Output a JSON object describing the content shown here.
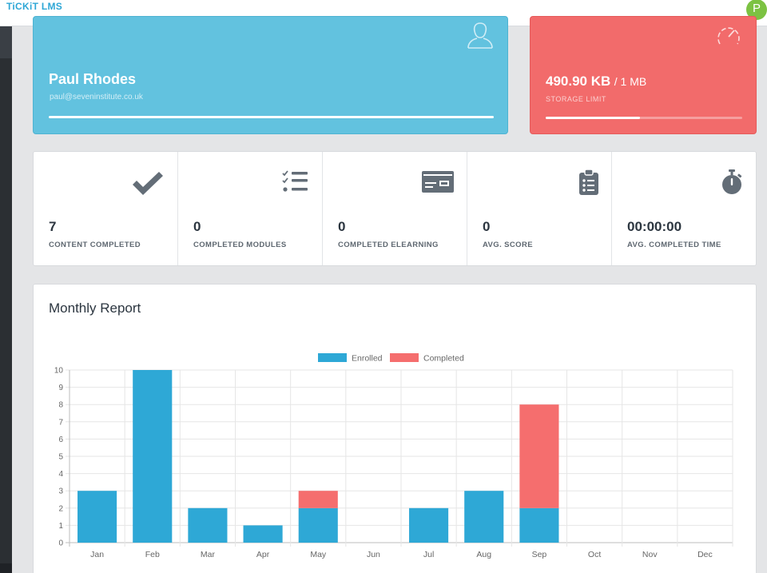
{
  "app": {
    "brand": "TiCKiT LMS",
    "avatar_initial": "P"
  },
  "profile": {
    "name": "Paul Rhodes",
    "email": "paul@seveninstitute.co.uk",
    "icon": "user-icon"
  },
  "storage": {
    "used": "490.90 KB",
    "limit": "/ 1 MB",
    "label": "STORAGE LIMIT",
    "used_fraction": 0.48,
    "icon": "gauge-icon"
  },
  "stats": [
    {
      "value": "7",
      "label": "CONTENT COMPLETED",
      "icon": "double-check-icon"
    },
    {
      "value": "0",
      "label": "COMPLETED MODULES",
      "icon": "checklist-icon"
    },
    {
      "value": "0",
      "label": "COMPLETED ELEARNING",
      "icon": "certificate-card-icon"
    },
    {
      "value": "0",
      "label": "AVG. SCORE",
      "icon": "clipboard-icon"
    },
    {
      "value": "00:00:00",
      "label": "AVG. COMPLETED TIME",
      "icon": "stopwatch-icon"
    }
  ],
  "report": {
    "title": "Monthly Report"
  },
  "colors": {
    "enrolled": "#2ea8d6",
    "completed": "#f56e6e",
    "profile_card": "#62c2df",
    "storage_card": "#f26b6b"
  },
  "chart_data": {
    "type": "bar",
    "stacked": true,
    "categories": [
      "Jan",
      "Feb",
      "Mar",
      "Apr",
      "May",
      "Jun",
      "Jul",
      "Aug",
      "Sep",
      "Oct",
      "Nov",
      "Dec"
    ],
    "series": [
      {
        "name": "Enrolled",
        "values": [
          3,
          10,
          2,
          1,
          2,
          0,
          2,
          3,
          2,
          0,
          0,
          0
        ]
      },
      {
        "name": "Completed",
        "values": [
          0,
          0,
          0,
          0,
          1,
          0,
          0,
          0,
          6,
          0,
          0,
          0
        ]
      }
    ],
    "ylim": [
      0,
      10
    ],
    "yticks": [
      "0",
      "1",
      "2",
      "3",
      "4",
      "5",
      "6",
      "7",
      "8",
      "9",
      "10"
    ],
    "grid": true,
    "legend": "top-center"
  }
}
